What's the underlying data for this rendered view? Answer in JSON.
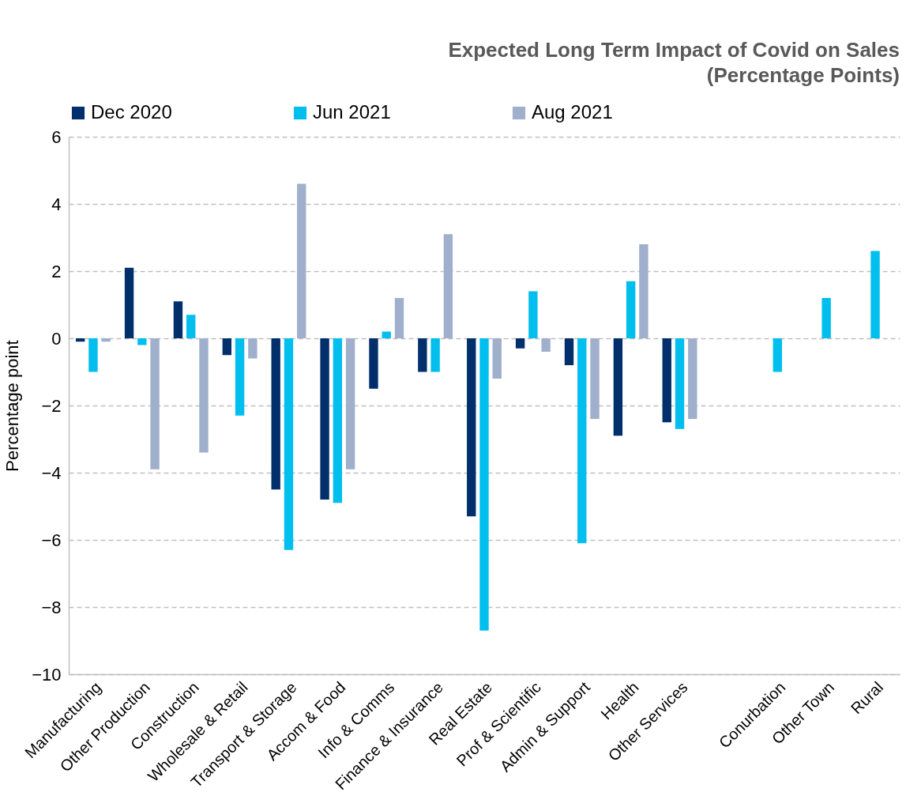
{
  "chart_data": {
    "type": "bar",
    "title": [
      "Expected Long Term Impact of Covid on Sales",
      "(Percentage Points)"
    ],
    "ylabel": "Percentage point",
    "categories": [
      "Manufacturing",
      "Other Production",
      "Construction",
      "Wholesale & Retail",
      "Transport & Storage",
      "Accom & Food",
      "Info & Comms",
      "Finance & Insurance",
      "Real Estate",
      "Prof & Scientific",
      "Admin & Support",
      "Health",
      "Other Services",
      null,
      "Conurbation",
      "Other Town",
      "Rural"
    ],
    "series": [
      {
        "name": "Dec 2020",
        "color": "#002f6c",
        "values": [
          -0.1,
          2.1,
          1.1,
          -0.5,
          -4.5,
          -4.8,
          -1.5,
          -1.0,
          -5.3,
          -0.3,
          -0.8,
          -2.9,
          -2.5,
          null,
          null,
          null,
          null
        ]
      },
      {
        "name": "Jun 2021",
        "color": "#00bfee",
        "values": [
          -1.0,
          -0.2,
          0.7,
          -2.3,
          -6.3,
          -4.9,
          0.2,
          -1.0,
          -8.7,
          1.4,
          -6.1,
          1.7,
          -2.7,
          null,
          -1.0,
          1.2,
          2.6
        ]
      },
      {
        "name": "Aug 2021",
        "color": "#9fafcc",
        "values": [
          -0.1,
          -3.9,
          -3.4,
          -0.6,
          4.6,
          -3.9,
          1.2,
          3.1,
          -1.2,
          -0.4,
          -2.4,
          2.8,
          -2.4,
          null,
          null,
          null,
          null
        ]
      }
    ],
    "ylim": [
      -10,
      6
    ],
    "yticks": [
      -10,
      -8,
      -6,
      -4,
      -2,
      0,
      2,
      4,
      6
    ],
    "grid": "y",
    "legend": "top"
  }
}
